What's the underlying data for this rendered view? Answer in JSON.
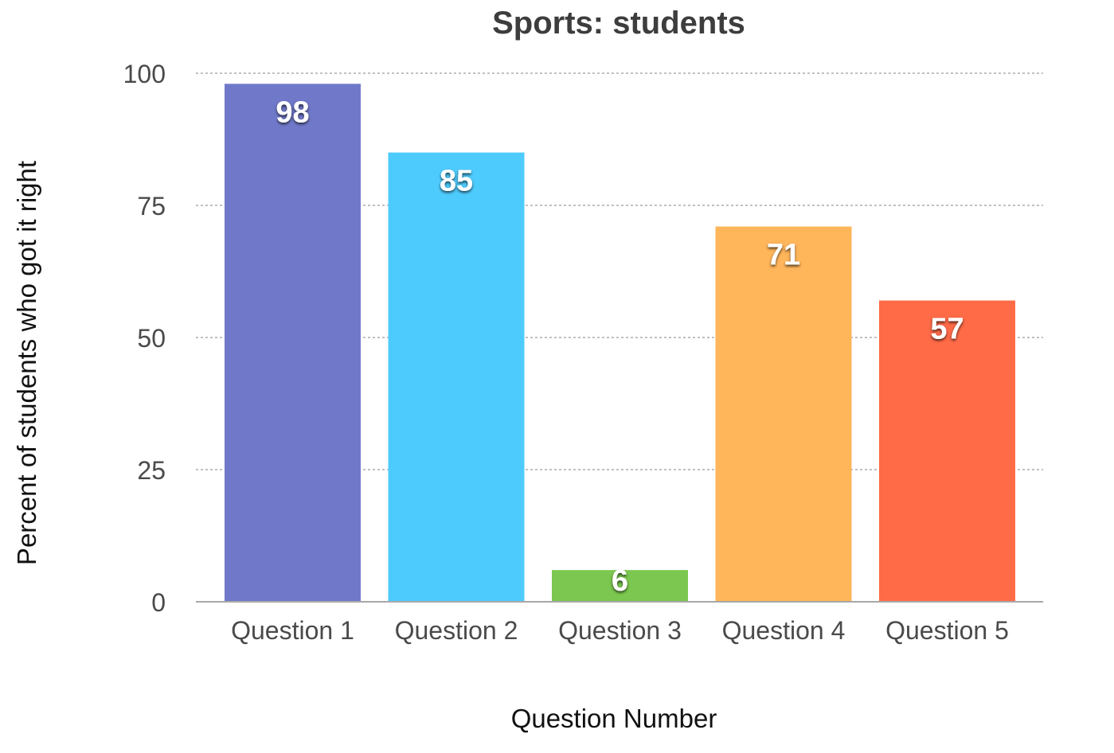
{
  "chart_data": {
    "type": "bar",
    "title": "Sports: students",
    "xlabel": "Question Number",
    "ylabel": "Percent of students who got it right",
    "categories": [
      "Question 1",
      "Question 2",
      "Question 3",
      "Question 4",
      "Question 5"
    ],
    "values": [
      98,
      85,
      6,
      71,
      57
    ],
    "data_labels": [
      "98",
      "85",
      "6",
      "71",
      "57"
    ],
    "colors": [
      "#7079c9",
      "#4ecbfd",
      "#7bc74f",
      "#ffb55a",
      "#ff6a47"
    ],
    "ylim": [
      0,
      100
    ],
    "yticks": [
      0,
      25,
      50,
      75,
      100
    ],
    "ytick_labels": [
      "0",
      "25",
      "50",
      "75",
      "100"
    ],
    "grid": true,
    "legend": "none"
  }
}
